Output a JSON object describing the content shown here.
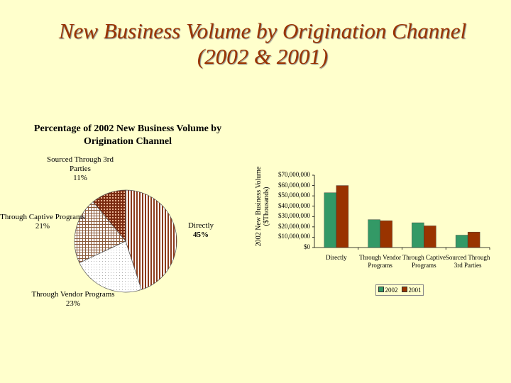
{
  "title": "New Business Volume by Origination Channel (2002 & 2001)",
  "chart_data": [
    {
      "type": "pie",
      "title": "Percentage of 2002 New Business Volume by Origination Channel",
      "categories": [
        "Directly",
        "Through Vendor Programs",
        "Through Captive Programs",
        "Sourced Through 3rd Parties"
      ],
      "values": [
        45,
        23,
        21,
        11
      ],
      "value_labels": [
        "45%",
        "23%",
        "21%",
        "11%"
      ],
      "colors": [
        "#8b3a1a",
        "#b0b0b0",
        "#8b5a3a",
        "#7a2a10"
      ]
    },
    {
      "type": "bar",
      "y_label": "2002 New Business Volume ($Thousands)",
      "categories": [
        "Directly",
        "Through Vendor Programs",
        "Through Captive Programs",
        "Sourced Through 3rd Parties"
      ],
      "series": [
        {
          "name": "2002",
          "color": "#339966",
          "values": [
            53000000,
            27000000,
            24000000,
            12000000
          ]
        },
        {
          "name": "2001",
          "color": "#993300",
          "values": [
            60000000,
            26000000,
            21000000,
            15000000
          ]
        }
      ],
      "ylim": [
        0,
        70000000
      ],
      "yticks": [
        {
          "value": 0,
          "label": "$0"
        },
        {
          "value": 10000000,
          "label": "$10,000,000"
        },
        {
          "value": 20000000,
          "label": "$20,000,000"
        },
        {
          "value": 30000000,
          "label": "$30,000,000"
        },
        {
          "value": 40000000,
          "label": "$40,000,000"
        },
        {
          "value": 50000000,
          "label": "$50,000,000"
        },
        {
          "value": 60000000,
          "label": "$60,000,000"
        },
        {
          "value": 70000000,
          "label": "$70,000,000"
        }
      ],
      "legend": "bottom"
    }
  ]
}
